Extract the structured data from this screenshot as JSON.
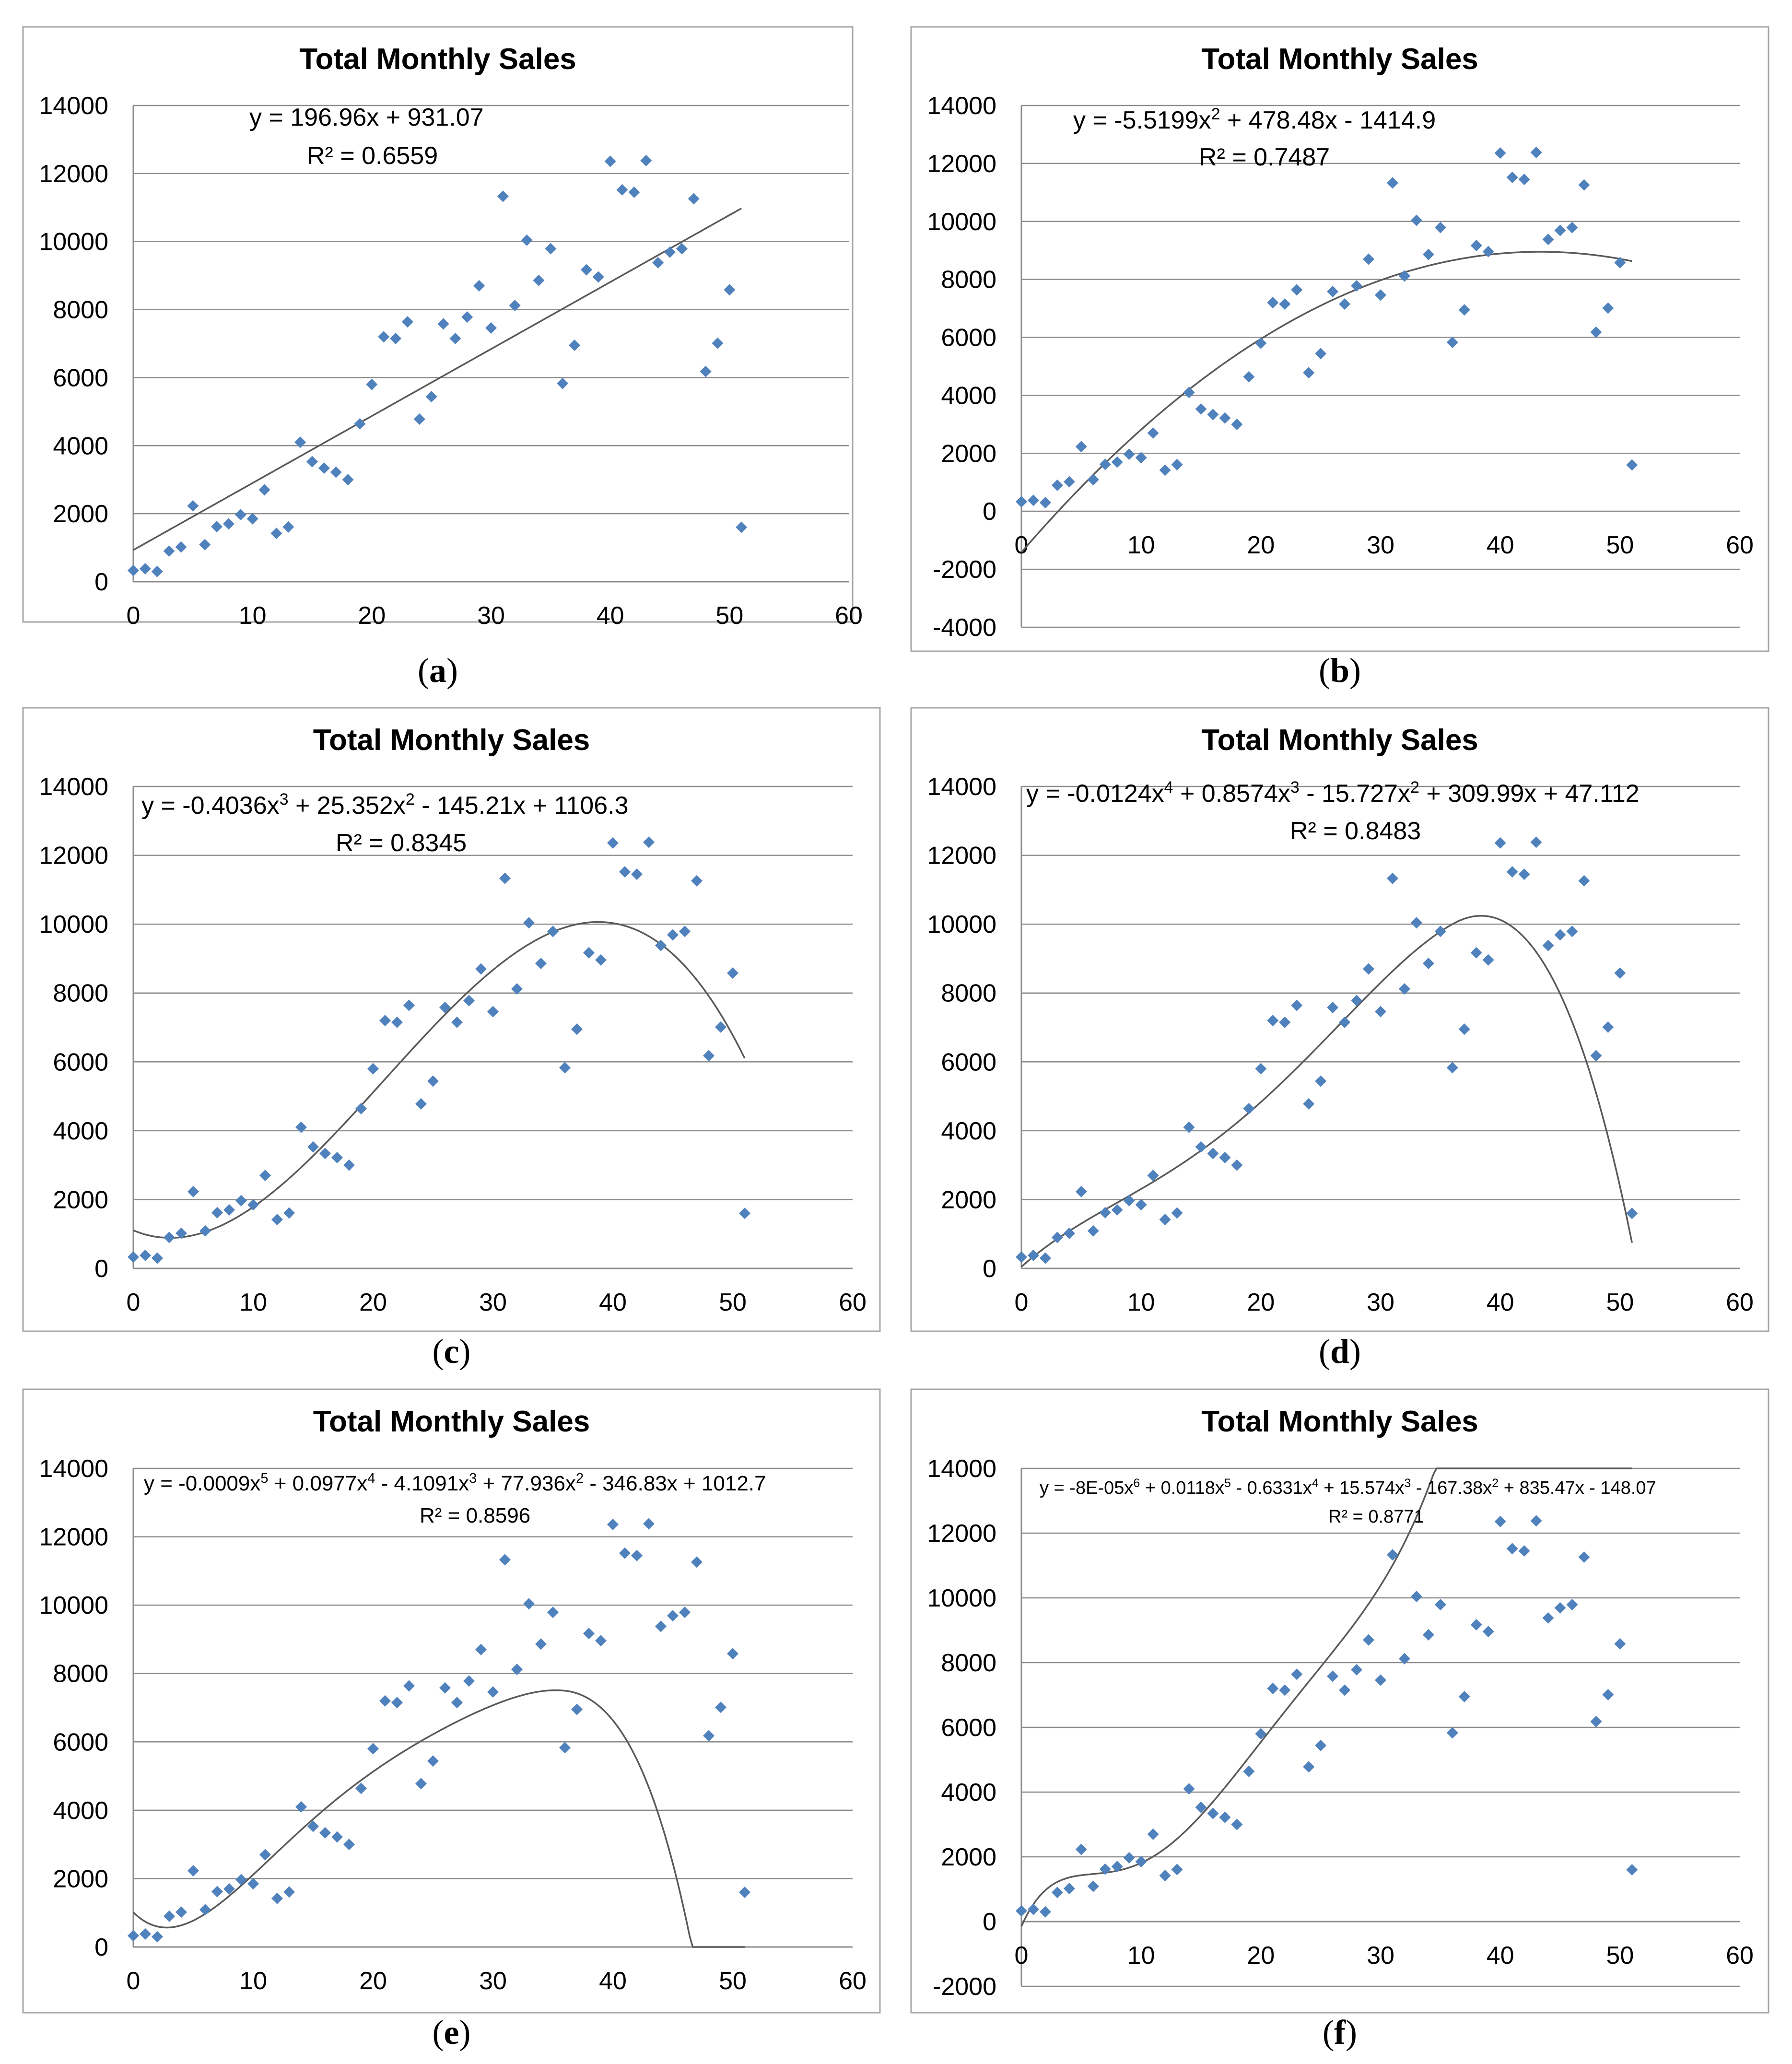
{
  "colors": {
    "marker": "#4f81bd",
    "trendline": "#595959",
    "grid": "#8c8c8c",
    "frame": "#a6a6a6"
  },
  "points": {
    "x": [
      0,
      1,
      2,
      3,
      4,
      5,
      6,
      7,
      8,
      9,
      10,
      11,
      12,
      13,
      14,
      15,
      16,
      17,
      18,
      19,
      20,
      21,
      22,
      23,
      24,
      25,
      26,
      27,
      28,
      29,
      30,
      31,
      32,
      33,
      34,
      35,
      36,
      37,
      38,
      39,
      40,
      41,
      42,
      43,
      44,
      45,
      46,
      47,
      48,
      49,
      50,
      51
    ],
    "y": [
      330,
      380,
      300,
      900,
      1020,
      2230,
      1090,
      1620,
      1700,
      1970,
      1850,
      2700,
      1420,
      1610,
      4100,
      3530,
      3340,
      3220,
      3000,
      4640,
      5800,
      7200,
      7150,
      7640,
      4780,
      5440,
      7580,
      7150,
      7780,
      8700,
      7460,
      11330,
      8120,
      10040,
      8860,
      9790,
      5830,
      6950,
      9170,
      8960,
      12360,
      11520,
      11450,
      12380,
      9380,
      9690,
      9790,
      11260,
      6180,
      7010,
      8580,
      1600
    ]
  },
  "panels": [
    {
      "id": "a",
      "caption_letter": "a",
      "title": "Total Monthly Sales",
      "y_ticks": [
        "14000",
        "12000",
        "10000",
        "8000",
        "6000",
        "4000",
        "2000",
        "0"
      ],
      "x_ticks": [
        "0",
        "10",
        "20",
        "30",
        "40",
        "50",
        "60"
      ],
      "eq_parts": [
        {
          "t": "y = 196.96x + 931.07"
        }
      ],
      "r2": "R² = 0.6559"
    },
    {
      "id": "b",
      "caption_letter": "b",
      "title": "Total Monthly Sales",
      "y_ticks": [
        "14000",
        "12000",
        "10000",
        "8000",
        "6000",
        "4000",
        "2000",
        "0",
        "-2000",
        "-4000"
      ],
      "x_ticks": [
        "0",
        "10",
        "20",
        "30",
        "40",
        "50",
        "60"
      ],
      "eq_parts": [
        {
          "t": "y = -5.5199x"
        },
        {
          "t": "2",
          "sup": true
        },
        {
          "t": " + 478.48x - 1414.9"
        }
      ],
      "r2": "R² = 0.7487"
    },
    {
      "id": "c",
      "caption_letter": "c",
      "title": "Total Monthly Sales",
      "y_ticks": [
        "14000",
        "12000",
        "10000",
        "8000",
        "6000",
        "4000",
        "2000",
        "0"
      ],
      "x_ticks": [
        "0",
        "10",
        "20",
        "30",
        "40",
        "50",
        "60"
      ],
      "eq_parts": [
        {
          "t": "y = -0.4036x"
        },
        {
          "t": "3",
          "sup": true
        },
        {
          "t": " + 25.352x"
        },
        {
          "t": "2",
          "sup": true
        },
        {
          "t": " - 145.21x + 1106.3"
        }
      ],
      "r2": "R² = 0.8345"
    },
    {
      "id": "d",
      "caption_letter": "d",
      "title": "Total Monthly Sales",
      "y_ticks": [
        "14000",
        "12000",
        "10000",
        "8000",
        "6000",
        "4000",
        "2000",
        "0"
      ],
      "x_ticks": [
        "0",
        "10",
        "20",
        "30",
        "40",
        "50",
        "60"
      ],
      "eq_parts": [
        {
          "t": "y = -0.0124x"
        },
        {
          "t": "4",
          "sup": true
        },
        {
          "t": " + 0.8574x"
        },
        {
          "t": "3",
          "sup": true
        },
        {
          "t": " - 15.727x"
        },
        {
          "t": "2",
          "sup": true
        },
        {
          "t": " + 309.99x + 47.112"
        }
      ],
      "r2": "R² = 0.8483"
    },
    {
      "id": "e",
      "caption_letter": "e",
      "title": "Total Monthly Sales",
      "y_ticks": [
        "14000",
        "12000",
        "10000",
        "8000",
        "6000",
        "4000",
        "2000",
        "0"
      ],
      "x_ticks": [
        "0",
        "10",
        "20",
        "30",
        "40",
        "50",
        "60"
      ],
      "eq_parts": [
        {
          "t": "y = -0.0009x"
        },
        {
          "t": "5",
          "sup": true
        },
        {
          "t": " + 0.0977x"
        },
        {
          "t": "4",
          "sup": true
        },
        {
          "t": " - 4.1091x"
        },
        {
          "t": "3",
          "sup": true
        },
        {
          "t": " + 77.936x"
        },
        {
          "t": "2",
          "sup": true
        },
        {
          "t": " - 346.83x + 1012.7"
        }
      ],
      "r2": "R² = 0.8596"
    },
    {
      "id": "f",
      "caption_letter": "f",
      "title": "Total Monthly Sales",
      "y_ticks": [
        "14000",
        "12000",
        "10000",
        "8000",
        "6000",
        "4000",
        "2000",
        "0",
        "-2000"
      ],
      "x_ticks": [
        "0",
        "10",
        "20",
        "30",
        "40",
        "50",
        "60"
      ],
      "eq_parts": [
        {
          "t": "y = -8E-05x"
        },
        {
          "t": "6",
          "sup": true
        },
        {
          "t": " + 0.0118x"
        },
        {
          "t": "5",
          "sup": true
        },
        {
          "t": " - 0.6331x"
        },
        {
          "t": "4",
          "sup": true
        },
        {
          "t": " + 15.574x"
        },
        {
          "t": "3",
          "sup": true
        },
        {
          "t": " - 167.38x"
        },
        {
          "t": "2",
          "sup": true
        },
        {
          "t": " + 835.47x - 148.07"
        }
      ],
      "r2": "R² = 0.8771"
    }
  ],
  "chart_data": [
    {
      "type": "scatter",
      "title": "Total Monthly Sales",
      "xlim": [
        0,
        60
      ],
      "ylim": [
        0,
        14000
      ],
      "grid": true,
      "trendline": "linear",
      "trendline_equation": "y = 196.96x + 931.07",
      "r_squared": 0.6559,
      "series": [
        {
          "values_ref": "points"
        }
      ]
    },
    {
      "type": "scatter",
      "title": "Total Monthly Sales",
      "xlim": [
        0,
        60
      ],
      "ylim": [
        -4000,
        14000
      ],
      "grid": true,
      "trendline": "polynomial-2",
      "trendline_equation": "y = -5.5199x^2 + 478.48x - 1414.9",
      "r_squared": 0.7487,
      "series": [
        {
          "values_ref": "points"
        }
      ]
    },
    {
      "type": "scatter",
      "title": "Total Monthly Sales",
      "xlim": [
        0,
        60
      ],
      "ylim": [
        0,
        14000
      ],
      "grid": true,
      "trendline": "polynomial-3",
      "trendline_equation": "y = -0.4036x^3 + 25.352x^2 - 145.21x + 1106.3",
      "r_squared": 0.8345,
      "series": [
        {
          "values_ref": "points"
        }
      ]
    },
    {
      "type": "scatter",
      "title": "Total Monthly Sales",
      "xlim": [
        0,
        60
      ],
      "ylim": [
        0,
        14000
      ],
      "grid": true,
      "trendline": "polynomial-4",
      "trendline_equation": "y = -0.0124x^4 + 0.8574x^3 - 15.727x^2 + 309.99x + 47.112",
      "r_squared": 0.8483,
      "series": [
        {
          "values_ref": "points"
        }
      ]
    },
    {
      "type": "scatter",
      "title": "Total Monthly Sales",
      "xlim": [
        0,
        60
      ],
      "ylim": [
        0,
        14000
      ],
      "grid": true,
      "trendline": "polynomial-5",
      "trendline_equation": "y = -0.0009x^5 + 0.0977x^4 - 4.1091x^3 + 77.936x^2 - 346.83x + 1012.7",
      "r_squared": 0.8596,
      "series": [
        {
          "values_ref": "points"
        }
      ]
    },
    {
      "type": "scatter",
      "title": "Total Monthly Sales",
      "xlim": [
        0,
        60
      ],
      "ylim": [
        -2000,
        14000
      ],
      "grid": true,
      "trendline": "polynomial-6",
      "trendline_equation": "y = -8E-05x^6 + 0.0118x^5 - 0.6331x^4 + 15.574x^3 - 167.38x^2 + 835.47x - 148.07",
      "r_squared": 0.8771,
      "series": [
        {
          "values_ref": "points"
        }
      ]
    }
  ]
}
